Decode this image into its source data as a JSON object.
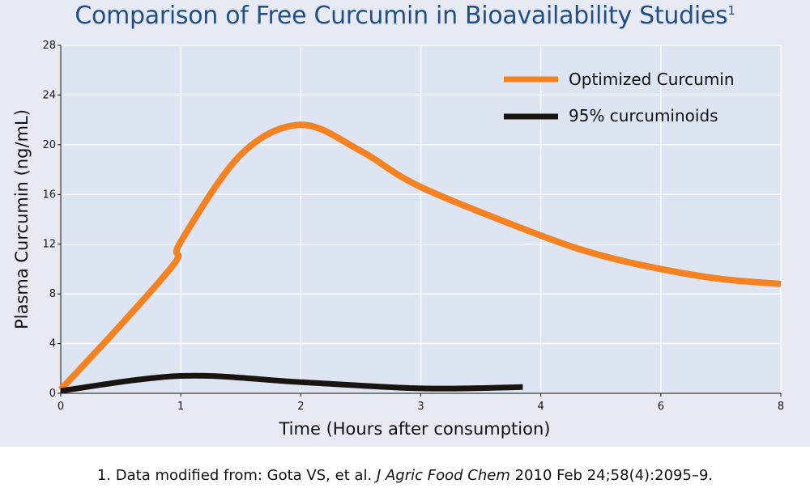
{
  "title": {
    "text": "Comparison of Free Curcumin in Bioavailability Studies",
    "superscript": "1"
  },
  "footnote": {
    "prefix": "1. Data modified from: Gota VS, et al. ",
    "journal": "J Agric Food Chem",
    "suffix": " 2010 Feb 24;58(4):2095–9."
  },
  "colors": {
    "optimized": "#f58220",
    "curcuminoids": "#1a1410",
    "title": "#1f4f86",
    "background": "#e7eaf3"
  },
  "chart_data": {
    "type": "line",
    "title": "Comparison of Free Curcumin in Bioavailability Studies",
    "xlabel": "Time (Hours after consumption)",
    "ylabel": "Plasma Curcumin (ng/mL)",
    "x_ticks": [
      "0",
      "1",
      "2",
      "3",
      "4",
      "6",
      "8"
    ],
    "y_ticks": [
      0,
      4,
      8,
      12,
      16,
      20,
      24,
      28
    ],
    "ylim": [
      0,
      28
    ],
    "grid": true,
    "legend_position": "top-right",
    "series": [
      {
        "name": "Optimized Curcumin",
        "color": "#f58220",
        "x": [
          0,
          0.5,
          0.95,
          1,
          1.5,
          2,
          2.5,
          3,
          4,
          5,
          6,
          7,
          8
        ],
        "y": [
          0.3,
          5.5,
          10.5,
          12.2,
          19.2,
          21.6,
          19.5,
          16.6,
          12.7,
          11.1,
          10.0,
          9.2,
          8.8
        ]
      },
      {
        "name": "95% curcuminoids",
        "color": "#1a1410",
        "x": [
          0,
          1,
          2,
          3,
          3.85
        ],
        "y": [
          0.2,
          1.4,
          0.9,
          0.4,
          0.5
        ]
      }
    ]
  }
}
